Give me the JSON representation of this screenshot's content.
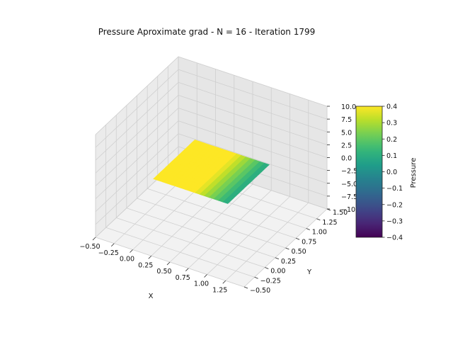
{
  "chart_data": {
    "type": "surface3d",
    "title": "Pressure Aproximate grad - N = 16 - Iteration 1799",
    "xlabel": "X",
    "ylabel": "Y",
    "zlabel": "",
    "xlim": [
      -0.5,
      1.5
    ],
    "ylim": [
      -0.5,
      1.5
    ],
    "zlim": [
      -10,
      10
    ],
    "x_ticks": [
      "−0.50",
      "−0.25",
      "0.00",
      "0.25",
      "0.50",
      "0.75",
      "1.00",
      "1.25"
    ],
    "y_ticks": [
      "−0.50",
      "−0.25",
      "0.00",
      "0.25",
      "0.50",
      "0.75",
      "1.00",
      "1.25",
      "1.50"
    ],
    "z_ticks": [
      "−10.0",
      "−7.5",
      "−5.0",
      "−2.5",
      "0.0",
      "2.5",
      "5.0",
      "7.5",
      "10.0"
    ],
    "grid": true,
    "colormap": "viridis",
    "surface": {
      "x_range": [
        0,
        1
      ],
      "y_range": [
        0,
        1
      ],
      "grid_n": 16,
      "z_approx": 0,
      "value_left": 0.4,
      "value_right": 0.08,
      "transition_x": [
        0.55,
        1.0
      ]
    },
    "colorbar": {
      "label": "Pressure",
      "min": -0.4,
      "max": 0.4,
      "ticks": [
        "0.4",
        "0.3",
        "0.2",
        "0.1",
        "0.0",
        "−0.1",
        "−0.2",
        "−0.3",
        "−0.4"
      ]
    }
  }
}
